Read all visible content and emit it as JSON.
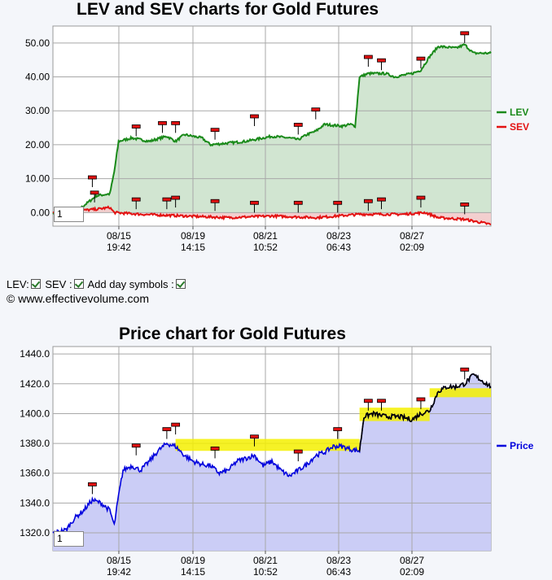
{
  "chart_data": [
    {
      "type": "area",
      "title": "LEV and SEV charts for Gold Futures",
      "y_ticks": [
        "50.00",
        "40.00",
        "30.00",
        "20.00",
        "10.00",
        "0.00"
      ],
      "x_ticks": [
        {
          "date": "08/15",
          "time": "19:42"
        },
        {
          "date": "08/19",
          "time": "14:15"
        },
        {
          "date": "08/21",
          "time": "10:52"
        },
        {
          "date": "08/23",
          "time": "06:43"
        },
        {
          "date": "08/27",
          "time": "02:09"
        }
      ],
      "ylim": [
        -4,
        55
      ],
      "grid": true,
      "legend_position": "right",
      "series": [
        {
          "name": "LEV",
          "color": "#1a8a1a",
          "fill": "#cfe4cf",
          "points": [
            [
              0,
              0
            ],
            [
              2,
              0.5
            ],
            [
              4,
              -1.5
            ],
            [
              6,
              1
            ],
            [
              9,
              4
            ],
            [
              10,
              5
            ],
            [
              13,
              5.5
            ],
            [
              14,
              12
            ],
            [
              15,
              21
            ],
            [
              18,
              22
            ],
            [
              22,
              21
            ],
            [
              26,
              22.5
            ],
            [
              28,
              21
            ],
            [
              30,
              23
            ],
            [
              34,
              22
            ],
            [
              36,
              20
            ],
            [
              40,
              20.5
            ],
            [
              44,
              21
            ],
            [
              48,
              22
            ],
            [
              50,
              22.5
            ],
            [
              54,
              22
            ],
            [
              56,
              21.5
            ],
            [
              58,
              23
            ],
            [
              60,
              24
            ],
            [
              62,
              26
            ],
            [
              66,
              25.5
            ],
            [
              68,
              26
            ],
            [
              69,
              25.5
            ],
            [
              70,
              40
            ],
            [
              72,
              41
            ],
            [
              76,
              41
            ],
            [
              78,
              40
            ],
            [
              82,
              41
            ],
            [
              84,
              42
            ],
            [
              86,
              46
            ],
            [
              88,
              49
            ],
            [
              92,
              48.5
            ],
            [
              94,
              49.5
            ],
            [
              96,
              47
            ],
            [
              100,
              47
            ]
          ]
        },
        {
          "name": "SEV",
          "color": "#e31212",
          "fill": "#f2cccc",
          "points": [
            [
              0,
              0
            ],
            [
              5,
              0.5
            ],
            [
              10,
              1
            ],
            [
              13,
              1.5
            ],
            [
              14,
              0
            ],
            [
              20,
              -0.5
            ],
            [
              30,
              -1
            ],
            [
              40,
              -1.5
            ],
            [
              50,
              -1
            ],
            [
              60,
              -1.5
            ],
            [
              70,
              -0.5
            ],
            [
              80,
              -0.5
            ],
            [
              85,
              0
            ],
            [
              88,
              -1.5
            ],
            [
              94,
              -2
            ],
            [
              100,
              -3.5
            ]
          ]
        }
      ],
      "day_symbols": {
        "LEV": [
          [
            9,
            7.5
          ],
          [
            9.5,
            3
          ],
          [
            19,
            22.5
          ],
          [
            25,
            23.5
          ],
          [
            28,
            23.5
          ],
          [
            37,
            21.5
          ],
          [
            46,
            25.5
          ],
          [
            56,
            23
          ],
          [
            60,
            27.5
          ],
          [
            72,
            43
          ],
          [
            75,
            42
          ],
          [
            84,
            42.5
          ],
          [
            94,
            50
          ]
        ],
        "SEV": [
          [
            19,
            1
          ],
          [
            26,
            1
          ],
          [
            28,
            1.5
          ],
          [
            37,
            0.5
          ],
          [
            46,
            0
          ],
          [
            56,
            0
          ],
          [
            65,
            0
          ],
          [
            72,
            0.5
          ],
          [
            75,
            1
          ],
          [
            84,
            1.5
          ],
          [
            94,
            -0.5
          ]
        ]
      },
      "input_value": "1"
    },
    {
      "type": "area",
      "title": "Price chart for Gold Futures",
      "y_ticks": [
        "1440.0",
        "1420.0",
        "1400.0",
        "1380.0",
        "1360.0",
        "1340.0",
        "1320.0"
      ],
      "x_ticks": [
        {
          "date": "08/15",
          "time": "19:42"
        },
        {
          "date": "08/19",
          "time": "14:15"
        },
        {
          "date": "08/21",
          "time": "10:52"
        },
        {
          "date": "08/23",
          "time": "06:43"
        },
        {
          "date": "08/27",
          "time": "02:09"
        }
      ],
      "ylim": [
        1308,
        1445
      ],
      "grid": true,
      "legend_position": "right",
      "series": [
        {
          "name": "Price",
          "color": "#0000dd",
          "fill": "#c8caf5",
          "points": [
            [
              0,
              1320
            ],
            [
              3,
              1322
            ],
            [
              5,
              1330
            ],
            [
              7,
              1335
            ],
            [
              9,
              1342
            ],
            [
              11,
              1340
            ],
            [
              13,
              1335
            ],
            [
              14,
              1325
            ],
            [
              15,
              1345
            ],
            [
              16,
              1362
            ],
            [
              18,
              1365
            ],
            [
              20,
              1362
            ],
            [
              22,
              1368
            ],
            [
              24,
              1375
            ],
            [
              26,
              1380
            ],
            [
              28,
              1378
            ],
            [
              30,
              1372
            ],
            [
              32,
              1368
            ],
            [
              34,
              1366
            ],
            [
              36,
              1365
            ],
            [
              38,
              1360
            ],
            [
              40,
              1362
            ],
            [
              42,
              1368
            ],
            [
              44,
              1370
            ],
            [
              46,
              1372
            ],
            [
              48,
              1365
            ],
            [
              50,
              1368
            ],
            [
              52,
              1362
            ],
            [
              54,
              1358
            ],
            [
              56,
              1362
            ],
            [
              58,
              1366
            ],
            [
              60,
              1372
            ],
            [
              62,
              1374
            ],
            [
              64,
              1378
            ],
            [
              66,
              1378
            ],
            [
              68,
              1376
            ],
            [
              70,
              1375
            ],
            [
              71,
              1398
            ],
            [
              73,
              1400
            ],
            [
              76,
              1398
            ],
            [
              79,
              1398
            ],
            [
              82,
              1396
            ],
            [
              84,
              1400
            ],
            [
              86,
              1402
            ],
            [
              88,
              1415
            ],
            [
              90,
              1418
            ],
            [
              92,
              1418
            ],
            [
              94,
              1420
            ],
            [
              96,
              1426
            ],
            [
              98,
              1422
            ],
            [
              100,
              1418
            ]
          ]
        }
      ],
      "highlight_bands": [
        [
          28,
          70,
          1375,
          1383
        ],
        [
          70,
          86,
          1395,
          1404
        ],
        [
          86,
          100,
          1411,
          1417
        ]
      ],
      "day_symbols": {
        "Price": [
          [
            9,
            1346
          ],
          [
            19,
            1372
          ],
          [
            26,
            1383
          ],
          [
            28,
            1386
          ],
          [
            37,
            1370
          ],
          [
            46,
            1378
          ],
          [
            56,
            1368
          ],
          [
            65,
            1383
          ],
          [
            72,
            1402
          ],
          [
            75,
            1402
          ],
          [
            84,
            1403
          ],
          [
            94,
            1423
          ]
        ]
      },
      "input_value": "1"
    }
  ],
  "controls": {
    "lev_label": "LEV:",
    "sev_label": "SEV :",
    "day_symbols_label": "Add day symbols :",
    "copyright": "© www.effectivevolume.com"
  }
}
